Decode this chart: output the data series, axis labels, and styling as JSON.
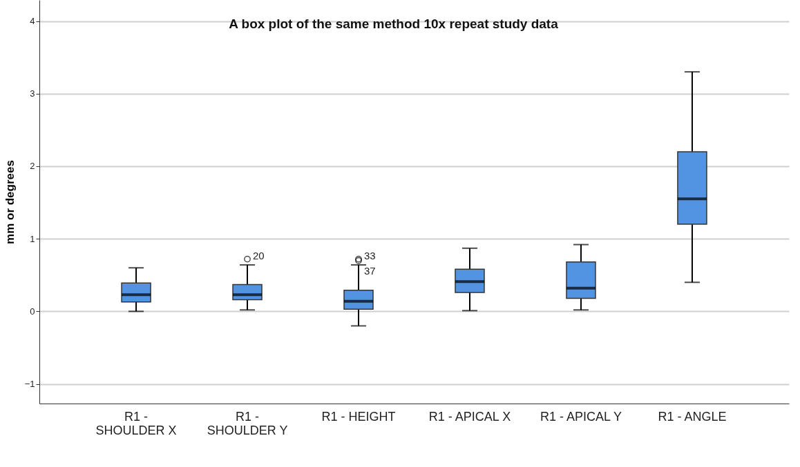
{
  "chart_data": {
    "type": "box",
    "title": "A box plot of the same method 10x repeat study data",
    "ylabel": "mm or degrees",
    "categories": [
      "R1 - SHOULDER X",
      "R1 - SHOULDER Y",
      "R1 - HEIGHT",
      "R1 - APICAL X",
      "R1 - APICAL Y",
      "R1 - ANGLE"
    ],
    "boxes": [
      {
        "low": 0.0,
        "q1": 0.13,
        "median": 0.23,
        "q3": 0.39,
        "high": 0.6
      },
      {
        "low": 0.02,
        "q1": 0.16,
        "median": 0.23,
        "q3": 0.37,
        "high": 0.64,
        "outliers": [
          0.72
        ]
      },
      {
        "low": -0.2,
        "q1": 0.03,
        "median": 0.14,
        "q3": 0.29,
        "high": 0.64,
        "outliers": [
          0.72,
          0.7
        ]
      },
      {
        "low": 0.01,
        "q1": 0.26,
        "median": 0.41,
        "q3": 0.58,
        "high": 0.87
      },
      {
        "low": 0.02,
        "q1": 0.18,
        "median": 0.32,
        "q3": 0.68,
        "high": 0.92
      },
      {
        "low": 0.4,
        "q1": 1.2,
        "median": 1.55,
        "q3": 2.2,
        "high": 3.3
      }
    ],
    "color": "#5294e2",
    "ylim": [
      -1.27,
      4.29
    ],
    "yticks": [
      -1,
      0,
      1,
      2,
      3,
      4
    ],
    "grid": "y",
    "annotations": [
      "20",
      "33",
      "37"
    ]
  }
}
